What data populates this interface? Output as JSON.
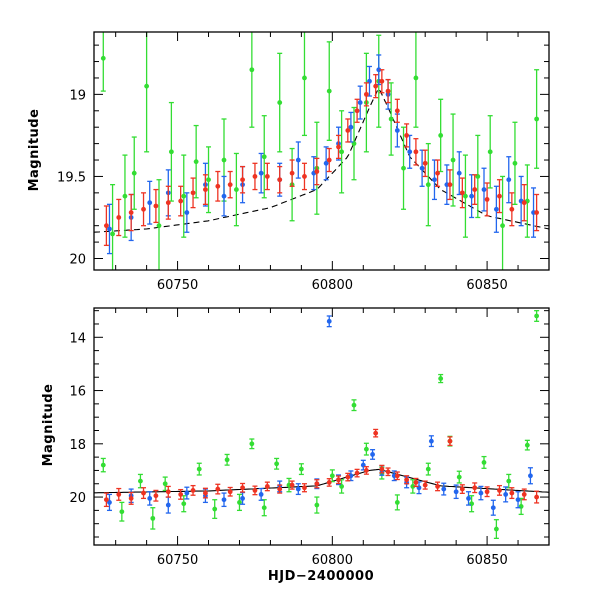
{
  "chart_data": [
    {
      "type": "scatter",
      "panel": "top",
      "xlabel": "",
      "ylabel": "Magnitude",
      "xlim": [
        60723,
        60870
      ],
      "ylim": [
        20.07,
        18.62
      ],
      "y_inverted": true,
      "x_ticks": [
        60750,
        60800,
        60850
      ],
      "y_ticks": [
        19,
        19.5,
        20
      ],
      "y_tick_labels": [
        "19",
        "19.5",
        "20"
      ],
      "grid": false,
      "legend": "none",
      "model_curve": {
        "color": "#000000",
        "x": [
          60723,
          60740,
          60760,
          60780,
          60795,
          60805,
          60812,
          60815,
          60818,
          60825,
          60835,
          60850,
          60870
        ],
        "y": [
          19.84,
          19.82,
          19.77,
          19.69,
          19.58,
          19.38,
          19.08,
          18.96,
          19.08,
          19.38,
          19.58,
          19.74,
          19.82
        ]
      },
      "series": [
        {
          "color": "#33dd33",
          "x": [
            60726,
            60729,
            60733,
            60736,
            60740,
            60744,
            60748,
            60752,
            60756,
            60760,
            60765,
            60769,
            60774,
            60778,
            60783,
            60787,
            60791,
            60795,
            60799,
            60803,
            60807,
            60811,
            60815,
            60819,
            60823,
            60827,
            60831,
            60835,
            60839,
            60843,
            60847,
            60851,
            60855,
            60859,
            60863,
            60866
          ],
          "y": [
            18.78,
            19.85,
            19.62,
            19.48,
            18.95,
            19.8,
            19.35,
            19.62,
            19.41,
            19.52,
            19.4,
            19.58,
            18.85,
            19.38,
            19.05,
            19.55,
            18.9,
            19.45,
            18.98,
            19.35,
            19.3,
            19.05,
            18.92,
            19.15,
            19.45,
            18.9,
            19.55,
            19.25,
            19.4,
            19.62,
            19.5,
            19.35,
            19.8,
            19.42,
            19.65,
            19.15
          ],
          "yerr": [
            0.2,
            0.3,
            0.25,
            0.22,
            0.4,
            0.28,
            0.3,
            0.25,
            0.22,
            0.2,
            0.25,
            0.22,
            0.35,
            0.25,
            0.3,
            0.22,
            0.35,
            0.28,
            0.3,
            0.25,
            0.22,
            0.3,
            0.28,
            0.22,
            0.25,
            0.3,
            0.25,
            0.22,
            0.28,
            0.25,
            0.25,
            0.22,
            0.3,
            0.25,
            0.22,
            0.3
          ]
        },
        {
          "color": "#2266ee",
          "x": [
            60728,
            60735,
            60741,
            60747,
            60753,
            60759,
            60765,
            60771,
            60777,
            60783,
            60789,
            60794,
            60798,
            60802,
            60806,
            60809,
            60812,
            60815,
            60818,
            60821,
            60825,
            60829,
            60833,
            60837,
            60841,
            60845,
            60849,
            60853,
            60857,
            60861,
            60865
          ],
          "y": [
            19.82,
            19.75,
            19.66,
            19.6,
            19.72,
            19.55,
            19.62,
            19.55,
            19.48,
            19.52,
            19.4,
            19.48,
            19.42,
            19.3,
            19.2,
            19.05,
            18.92,
            18.85,
            19.0,
            19.22,
            19.35,
            19.45,
            19.52,
            19.55,
            19.48,
            19.62,
            19.58,
            19.7,
            19.52,
            19.65,
            19.72
          ],
          "yerr": [
            0.15,
            0.14,
            0.13,
            0.14,
            0.12,
            0.13,
            0.12,
            0.11,
            0.12,
            0.1,
            0.11,
            0.1,
            0.1,
            0.1,
            0.09,
            0.1,
            0.09,
            0.09,
            0.09,
            0.1,
            0.1,
            0.11,
            0.12,
            0.12,
            0.13,
            0.13,
            0.13,
            0.14,
            0.14,
            0.15,
            0.15
          ]
        },
        {
          "color": "#ee3322",
          "x": [
            60727,
            60731,
            60735,
            60739,
            60743,
            60747,
            60751,
            60755,
            60759,
            60763,
            60767,
            60771,
            60775,
            60779,
            60783,
            60787,
            60791,
            60795,
            60799,
            60802,
            60805,
            60808,
            60811,
            60814,
            60816,
            60818,
            60821,
            60824,
            60827,
            60830,
            60834,
            60838,
            60842,
            60846,
            60850,
            60854,
            60858,
            60862,
            60866
          ],
          "y": [
            19.8,
            19.75,
            19.72,
            19.7,
            19.68,
            19.66,
            19.65,
            19.6,
            19.58,
            19.56,
            19.55,
            19.52,
            19.5,
            19.5,
            19.52,
            19.48,
            19.5,
            19.47,
            19.4,
            19.32,
            19.22,
            19.1,
            19.0,
            18.95,
            18.92,
            18.98,
            19.1,
            19.25,
            19.35,
            19.42,
            19.48,
            19.55,
            19.6,
            19.58,
            19.64,
            19.62,
            19.7,
            19.66,
            19.72
          ],
          "yerr": [
            0.12,
            0.11,
            0.11,
            0.1,
            0.1,
            0.1,
            0.09,
            0.09,
            0.09,
            0.09,
            0.08,
            0.08,
            0.08,
            0.08,
            0.08,
            0.08,
            0.08,
            0.08,
            0.07,
            0.07,
            0.07,
            0.07,
            0.07,
            0.07,
            0.07,
            0.07,
            0.07,
            0.07,
            0.08,
            0.08,
            0.08,
            0.09,
            0.09,
            0.09,
            0.1,
            0.1,
            0.1,
            0.11,
            0.11
          ]
        }
      ]
    },
    {
      "type": "scatter",
      "panel": "bottom",
      "xlabel": "HJD−2400000",
      "ylabel": "Magnitude",
      "xlim": [
        60723,
        60870
      ],
      "ylim": [
        21.8,
        12.9
      ],
      "y_inverted": true,
      "x_ticks": [
        60750,
        60800,
        60850
      ],
      "y_ticks": [
        14,
        16,
        18,
        20
      ],
      "y_tick_labels": [
        "14",
        "16",
        "18",
        "20"
      ],
      "grid": false,
      "legend": "none",
      "model_curve": {
        "color": "#000000",
        "x": [
          60723,
          60760,
          60795,
          60812,
          60815,
          60818,
          60835,
          60870
        ],
        "y": [
          19.84,
          19.77,
          19.58,
          19.0,
          18.96,
          19.05,
          19.58,
          19.82
        ]
      },
      "series": [
        {
          "color": "#33dd33",
          "x": [
            60726,
            60732,
            60738,
            60742,
            60746,
            60752,
            60757,
            60762,
            60766,
            60770,
            60774,
            60778,
            60782,
            60786,
            60790,
            60795,
            60800,
            60803,
            60807,
            60811,
            60816,
            60821,
            60826,
            60831,
            60835,
            60838,
            60841,
            60845,
            60849,
            60853,
            60857,
            60861,
            60863,
            60866
          ],
          "y": [
            18.8,
            20.55,
            19.4,
            20.8,
            19.5,
            20.25,
            18.95,
            20.45,
            18.6,
            20.2,
            18.0,
            20.4,
            18.75,
            19.55,
            18.95,
            20.3,
            19.2,
            19.6,
            16.55,
            18.2,
            19.1,
            20.2,
            19.6,
            18.95,
            15.55,
            17.9,
            19.25,
            20.25,
            18.7,
            21.2,
            19.4,
            20.35,
            18.05,
            13.2
          ],
          "yerr": [
            0.25,
            0.35,
            0.25,
            0.4,
            0.25,
            0.3,
            0.22,
            0.35,
            0.2,
            0.3,
            0.18,
            0.3,
            0.2,
            0.25,
            0.2,
            0.3,
            0.22,
            0.25,
            0.2,
            0.22,
            0.22,
            0.28,
            0.25,
            0.22,
            0.15,
            0.18,
            0.22,
            0.3,
            0.22,
            0.35,
            0.25,
            0.3,
            0.18,
            0.2
          ]
        },
        {
          "color": "#2266ee",
          "x": [
            60728,
            60735,
            60741,
            60747,
            60753,
            60759,
            60765,
            60771,
            60777,
            60783,
            60789,
            60795,
            60799,
            60802,
            60806,
            60810,
            60813,
            60816,
            60820,
            60824,
            60828,
            60832,
            60836,
            60840,
            60844,
            60848,
            60852,
            60856,
            60860,
            60864
          ],
          "y": [
            20.2,
            19.95,
            20.05,
            20.3,
            19.85,
            19.95,
            20.1,
            20.05,
            19.9,
            19.6,
            19.7,
            19.5,
            13.4,
            19.35,
            19.2,
            18.8,
            18.4,
            19.0,
            19.2,
            19.45,
            19.65,
            17.9,
            19.7,
            19.8,
            20.05,
            19.85,
            20.4,
            19.9,
            20.1,
            19.2
          ],
          "yerr": [
            0.3,
            0.25,
            0.25,
            0.3,
            0.22,
            0.25,
            0.25,
            0.22,
            0.22,
            0.2,
            0.2,
            0.18,
            0.2,
            0.18,
            0.18,
            0.18,
            0.18,
            0.18,
            0.18,
            0.2,
            0.22,
            0.2,
            0.22,
            0.25,
            0.25,
            0.25,
            0.28,
            0.28,
            0.3,
            0.3
          ]
        },
        {
          "color": "#ee3322",
          "x": [
            60727,
            60731,
            60735,
            60739,
            60743,
            60747,
            60751,
            60755,
            60759,
            60763,
            60767,
            60771,
            60775,
            60779,
            60783,
            60787,
            60791,
            60795,
            60799,
            60802,
            60805,
            60808,
            60811,
            60814,
            60816,
            60818,
            60821,
            60824,
            60827,
            60830,
            60834,
            60838,
            60842,
            60846,
            60850,
            60854,
            60858,
            60862,
            60866
          ],
          "y": [
            20.1,
            19.9,
            20.05,
            19.85,
            19.95,
            19.8,
            19.9,
            19.75,
            19.85,
            19.7,
            19.8,
            19.65,
            19.75,
            19.6,
            19.7,
            19.55,
            19.65,
            19.5,
            19.45,
            19.35,
            19.25,
            19.1,
            19.0,
            17.6,
            18.95,
            19.05,
            19.2,
            19.35,
            19.45,
            19.55,
            19.6,
            17.9,
            19.7,
            19.65,
            19.8,
            19.75,
            19.85,
            19.9,
            20.0
          ],
          "yerr": [
            0.25,
            0.22,
            0.22,
            0.2,
            0.2,
            0.2,
            0.18,
            0.18,
            0.18,
            0.18,
            0.16,
            0.16,
            0.16,
            0.16,
            0.15,
            0.15,
            0.15,
            0.15,
            0.14,
            0.14,
            0.14,
            0.14,
            0.14,
            0.14,
            0.14,
            0.14,
            0.14,
            0.15,
            0.15,
            0.15,
            0.16,
            0.16,
            0.16,
            0.18,
            0.18,
            0.18,
            0.2,
            0.2,
            0.22
          ]
        }
      ]
    }
  ]
}
